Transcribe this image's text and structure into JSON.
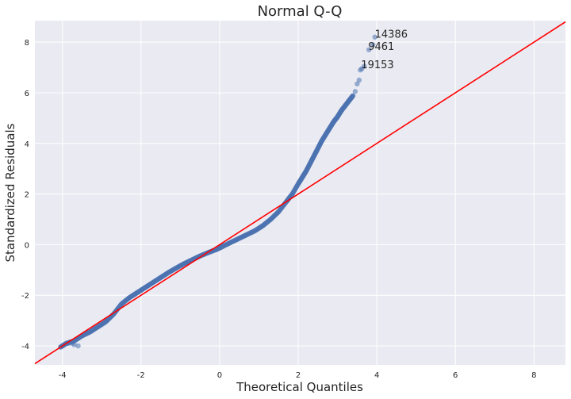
{
  "chart_data": {
    "type": "scatter",
    "title": "Normal Q-Q",
    "xlabel": "Theoretical Quantiles",
    "ylabel": "Standardized Residuals",
    "xlim": [
      -4.7,
      8.8
    ],
    "ylim": [
      -4.75,
      8.85
    ],
    "xticks": [
      -4,
      -2,
      0,
      2,
      4,
      6,
      8
    ],
    "yticks": [
      -4,
      -2,
      0,
      2,
      4,
      6,
      8
    ],
    "grid": true,
    "colors": {
      "points": "#4c72b0",
      "reference_line": "#ff0000",
      "background": "#eaeaf2",
      "grid": "#ffffff"
    },
    "reference_line": {
      "slope": 1,
      "intercept": 0
    },
    "qq_curve": {
      "x": [
        -4.05,
        -3.9,
        -3.7,
        -3.5,
        -3.3,
        -3.1,
        -2.9,
        -2.7,
        -2.5,
        -2.3,
        -2.1,
        -1.9,
        -1.7,
        -1.5,
        -1.3,
        -1.1,
        -0.9,
        -0.7,
        -0.5,
        -0.3,
        -0.1,
        0.0,
        0.1,
        0.3,
        0.5,
        0.7,
        0.9,
        1.1,
        1.3,
        1.5,
        1.7,
        1.85,
        2.0,
        2.1,
        2.2,
        2.3,
        2.4,
        2.5,
        2.6,
        2.7,
        2.8,
        2.9,
        3.0,
        3.1,
        3.2,
        3.3,
        3.4
      ],
      "y": [
        -4.05,
        -3.9,
        -3.8,
        -3.6,
        -3.45,
        -3.25,
        -3.05,
        -2.75,
        -2.35,
        -2.1,
        -1.9,
        -1.7,
        -1.5,
        -1.3,
        -1.1,
        -0.92,
        -0.75,
        -0.6,
        -0.45,
        -0.32,
        -0.2,
        -0.13,
        -0.05,
        0.1,
        0.25,
        0.4,
        0.55,
        0.75,
        1.0,
        1.3,
        1.7,
        2.0,
        2.4,
        2.65,
        2.9,
        3.2,
        3.5,
        3.8,
        4.1,
        4.35,
        4.6,
        4.85,
        5.05,
        5.3,
        5.5,
        5.7,
        5.9
      ]
    },
    "tail_points": {
      "x": [
        -3.85,
        -3.75,
        -3.7,
        -3.6,
        3.45,
        3.5,
        3.55,
        3.58,
        3.62,
        3.68,
        3.8,
        3.9,
        3.95
      ],
      "y": [
        -3.9,
        -3.9,
        -3.95,
        -4.0,
        6.05,
        6.35,
        6.5,
        6.9,
        6.95,
        7.05,
        7.7,
        7.9,
        8.2
      ]
    },
    "annotations": [
      {
        "text": "14386",
        "x": 3.95,
        "y": 8.2
      },
      {
        "text": "9461",
        "x": 3.78,
        "y": 7.72
      },
      {
        "text": "19153",
        "x": 3.6,
        "y": 7.0
      }
    ]
  }
}
